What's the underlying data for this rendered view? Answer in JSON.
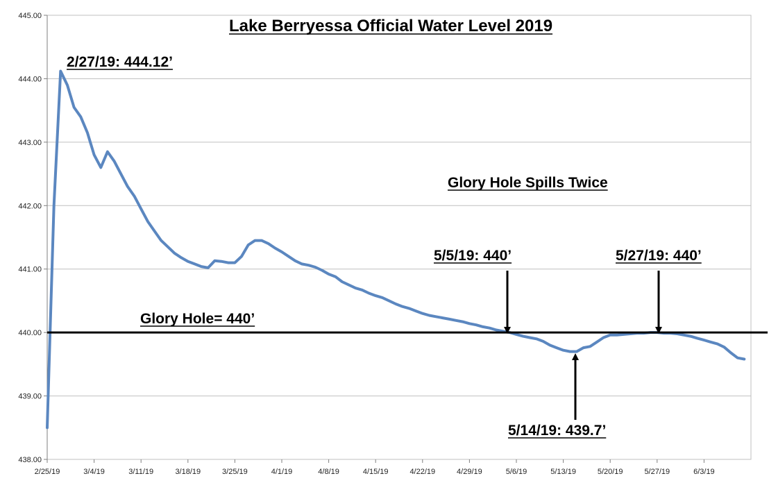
{
  "chart_data": {
    "type": "line",
    "title": "Lake Berryessa Official Water Level 2019",
    "xlabel": "",
    "ylabel": "",
    "x_ticks": [
      "2/25/19",
      "3/4/19",
      "3/11/19",
      "3/18/19",
      "3/25/19",
      "4/1/19",
      "4/8/19",
      "4/15/19",
      "4/22/19",
      "4/29/19",
      "5/6/19",
      "5/13/19",
      "5/20/19",
      "5/27/19",
      "6/3/19"
    ],
    "y_ticks": [
      "438.00",
      "439.00",
      "440.00",
      "441.00",
      "442.00",
      "443.00",
      "444.00",
      "445.00"
    ],
    "ylim": [
      438,
      445
    ],
    "xlim": [
      "2/25/19",
      "6/10/19"
    ],
    "grid": "horizontal",
    "legend": "none",
    "colors": {
      "series": "#5b87c0",
      "reference_line": "#000000",
      "grid": "#bfbfbf"
    },
    "series": [
      {
        "values": [
          [
            "2/25/19",
            438.5
          ],
          [
            "2/26/19",
            442.0
          ],
          [
            "2/27/19",
            444.12
          ],
          [
            "2/28/19",
            443.9
          ],
          [
            "3/1/19",
            443.55
          ],
          [
            "3/2/19",
            443.4
          ],
          [
            "3/3/19",
            443.15
          ],
          [
            "3/4/19",
            442.8
          ],
          [
            "3/5/19",
            442.6
          ],
          [
            "3/6/19",
            442.85
          ],
          [
            "3/7/19",
            442.7
          ],
          [
            "3/8/19",
            442.5
          ],
          [
            "3/9/19",
            442.3
          ],
          [
            "3/10/19",
            442.15
          ],
          [
            "3/11/19",
            441.95
          ],
          [
            "3/12/19",
            441.75
          ],
          [
            "3/13/19",
            441.6
          ],
          [
            "3/14/19",
            441.45
          ],
          [
            "3/15/19",
            441.35
          ],
          [
            "3/16/19",
            441.25
          ],
          [
            "3/17/19",
            441.18
          ],
          [
            "3/18/19",
            441.12
          ],
          [
            "3/19/19",
            441.08
          ],
          [
            "3/20/19",
            441.04
          ],
          [
            "3/21/19",
            441.02
          ],
          [
            "3/22/19",
            441.13
          ],
          [
            "3/23/19",
            441.12
          ],
          [
            "3/24/19",
            441.1
          ],
          [
            "3/25/19",
            441.1
          ],
          [
            "3/26/19",
            441.2
          ],
          [
            "3/27/19",
            441.38
          ],
          [
            "3/28/19",
            441.45
          ],
          [
            "3/29/19",
            441.45
          ],
          [
            "3/30/19",
            441.4
          ],
          [
            "3/31/19",
            441.33
          ],
          [
            "4/1/19",
            441.27
          ],
          [
            "4/2/19",
            441.2
          ],
          [
            "4/3/19",
            441.13
          ],
          [
            "4/4/19",
            441.08
          ],
          [
            "4/5/19",
            441.06
          ],
          [
            "4/6/19",
            441.03
          ],
          [
            "4/7/19",
            440.98
          ],
          [
            "4/8/19",
            440.92
          ],
          [
            "4/9/19",
            440.88
          ],
          [
            "4/10/19",
            440.8
          ],
          [
            "4/11/19",
            440.75
          ],
          [
            "4/12/19",
            440.7
          ],
          [
            "4/13/19",
            440.67
          ],
          [
            "4/14/19",
            440.62
          ],
          [
            "4/15/19",
            440.58
          ],
          [
            "4/16/19",
            440.55
          ],
          [
            "4/17/19",
            440.5
          ],
          [
            "4/18/19",
            440.45
          ],
          [
            "4/19/19",
            440.41
          ],
          [
            "4/20/19",
            440.38
          ],
          [
            "4/21/19",
            440.34
          ],
          [
            "4/22/19",
            440.3
          ],
          [
            "4/23/19",
            440.27
          ],
          [
            "4/24/19",
            440.25
          ],
          [
            "4/25/19",
            440.23
          ],
          [
            "4/26/19",
            440.21
          ],
          [
            "4/27/19",
            440.19
          ],
          [
            "4/28/19",
            440.17
          ],
          [
            "4/29/19",
            440.14
          ],
          [
            "4/30/19",
            440.12
          ],
          [
            "5/1/19",
            440.09
          ],
          [
            "5/2/19",
            440.07
          ],
          [
            "5/3/19",
            440.04
          ],
          [
            "5/4/19",
            440.02
          ],
          [
            "5/5/19",
            440.0
          ],
          [
            "5/6/19",
            439.97
          ],
          [
            "5/7/19",
            439.94
          ],
          [
            "5/8/19",
            439.92
          ],
          [
            "5/9/19",
            439.9
          ],
          [
            "5/10/19",
            439.86
          ],
          [
            "5/11/19",
            439.8
          ],
          [
            "5/12/19",
            439.76
          ],
          [
            "5/13/19",
            439.72
          ],
          [
            "5/14/19",
            439.7
          ],
          [
            "5/15/19",
            439.7
          ],
          [
            "5/16/19",
            439.76
          ],
          [
            "5/17/19",
            439.78
          ],
          [
            "5/18/19",
            439.85
          ],
          [
            "5/19/19",
            439.92
          ],
          [
            "5/20/19",
            439.96
          ],
          [
            "5/21/19",
            439.96
          ],
          [
            "5/22/19",
            439.97
          ],
          [
            "5/23/19",
            439.98
          ],
          [
            "5/24/19",
            439.99
          ],
          [
            "5/25/19",
            439.99
          ],
          [
            "5/26/19",
            440.0
          ],
          [
            "5/27/19",
            440.0
          ],
          [
            "5/28/19",
            439.99
          ],
          [
            "5/29/19",
            439.99
          ],
          [
            "5/30/19",
            439.98
          ],
          [
            "5/31/19",
            439.96
          ],
          [
            "6/1/19",
            439.94
          ],
          [
            "6/2/19",
            439.91
          ],
          [
            "6/3/19",
            439.88
          ],
          [
            "6/4/19",
            439.85
          ],
          [
            "6/5/19",
            439.82
          ],
          [
            "6/6/19",
            439.77
          ],
          [
            "6/7/19",
            439.68
          ],
          [
            "6/8/19",
            439.6
          ],
          [
            "6/9/19",
            439.58
          ]
        ]
      }
    ],
    "reference_line": {
      "y": 440,
      "label": "Glory Hole= 440’"
    },
    "annotations": [
      {
        "id": "peak",
        "text": "2/27/19: 444.12’",
        "x": "2/27/19",
        "y": 444.12,
        "arrow": false
      },
      {
        "id": "spills",
        "text": "Glory Hole Spills Twice",
        "arrow": false
      },
      {
        "id": "may5",
        "text": "5/5/19: 440’",
        "x": "5/5/19",
        "y": 440,
        "arrow": "down"
      },
      {
        "id": "may27",
        "text": "5/27/19: 440’",
        "x": "5/27/19",
        "y": 440,
        "arrow": "down"
      },
      {
        "id": "may14",
        "text": "5/14/19: 439.7’",
        "x": "5/14/19",
        "y": 439.7,
        "arrow": "up"
      }
    ]
  }
}
